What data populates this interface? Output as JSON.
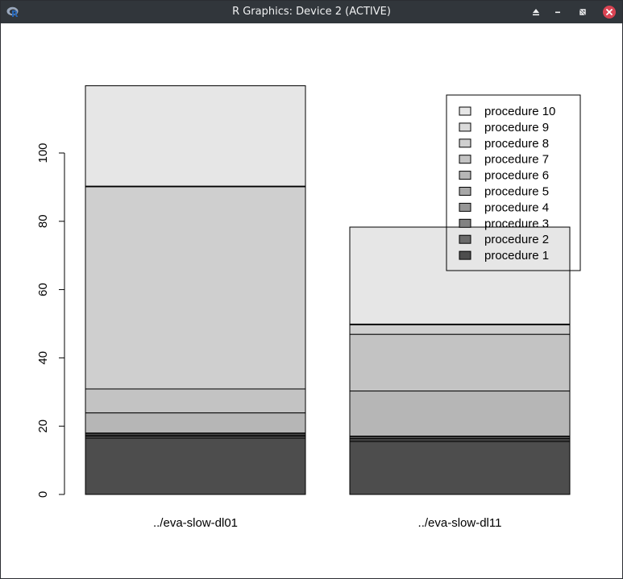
{
  "window": {
    "title": "R Graphics: Device 2 (ACTIVE)",
    "icons": [
      "r-logo-icon",
      "keep-above-icon",
      "minimize-icon",
      "restore-icon",
      "close-icon"
    ],
    "colors": {
      "titlebar": "#31363b",
      "close": "#da4453"
    }
  },
  "chart_data": {
    "type": "bar",
    "stacked": true,
    "categories": [
      "../eva-slow-dl01",
      "../eva-slow-dl11"
    ],
    "y_ticks": [
      0,
      20,
      40,
      60,
      80,
      100
    ],
    "ylim": [
      0,
      120
    ],
    "xlabel": "",
    "ylabel": "",
    "title": "",
    "series": [
      {
        "name": "procedure 1",
        "color": "#4d4d4d",
        "values": [
          16.5,
          15.5
        ]
      },
      {
        "name": "procedure 2",
        "color": "#6b6b6b",
        "values": [
          0.5,
          0.5
        ]
      },
      {
        "name": "procedure 3",
        "color": "#828282",
        "values": [
          0.3,
          0.4
        ]
      },
      {
        "name": "procedure 4",
        "color": "#969696",
        "values": [
          0.4,
          0.4
        ]
      },
      {
        "name": "procedure 5",
        "color": "#a7a7a7",
        "values": [
          0.3,
          0.3
        ]
      },
      {
        "name": "procedure 6",
        "color": "#b6b6b6",
        "values": [
          5.9,
          13.2
        ]
      },
      {
        "name": "procedure 7",
        "color": "#c3c3c3",
        "values": [
          7.0,
          16.6
        ]
      },
      {
        "name": "procedure 8",
        "color": "#cfcfcf",
        "values": [
          59.2,
          2.8
        ]
      },
      {
        "name": "procedure 9",
        "color": "#dadada",
        "values": [
          0.2,
          0.2
        ]
      },
      {
        "name": "procedure 10",
        "color": "#e6e6e6",
        "values": [
          29.4,
          28.4
        ]
      }
    ],
    "legend": {
      "position": "top-right",
      "entries": [
        "procedure 10",
        "procedure 9",
        "procedure 8",
        "procedure 7",
        "procedure 6",
        "procedure 5",
        "procedure 4",
        "procedure 3",
        "procedure 2",
        "procedure 1"
      ]
    },
    "grid": false
  }
}
